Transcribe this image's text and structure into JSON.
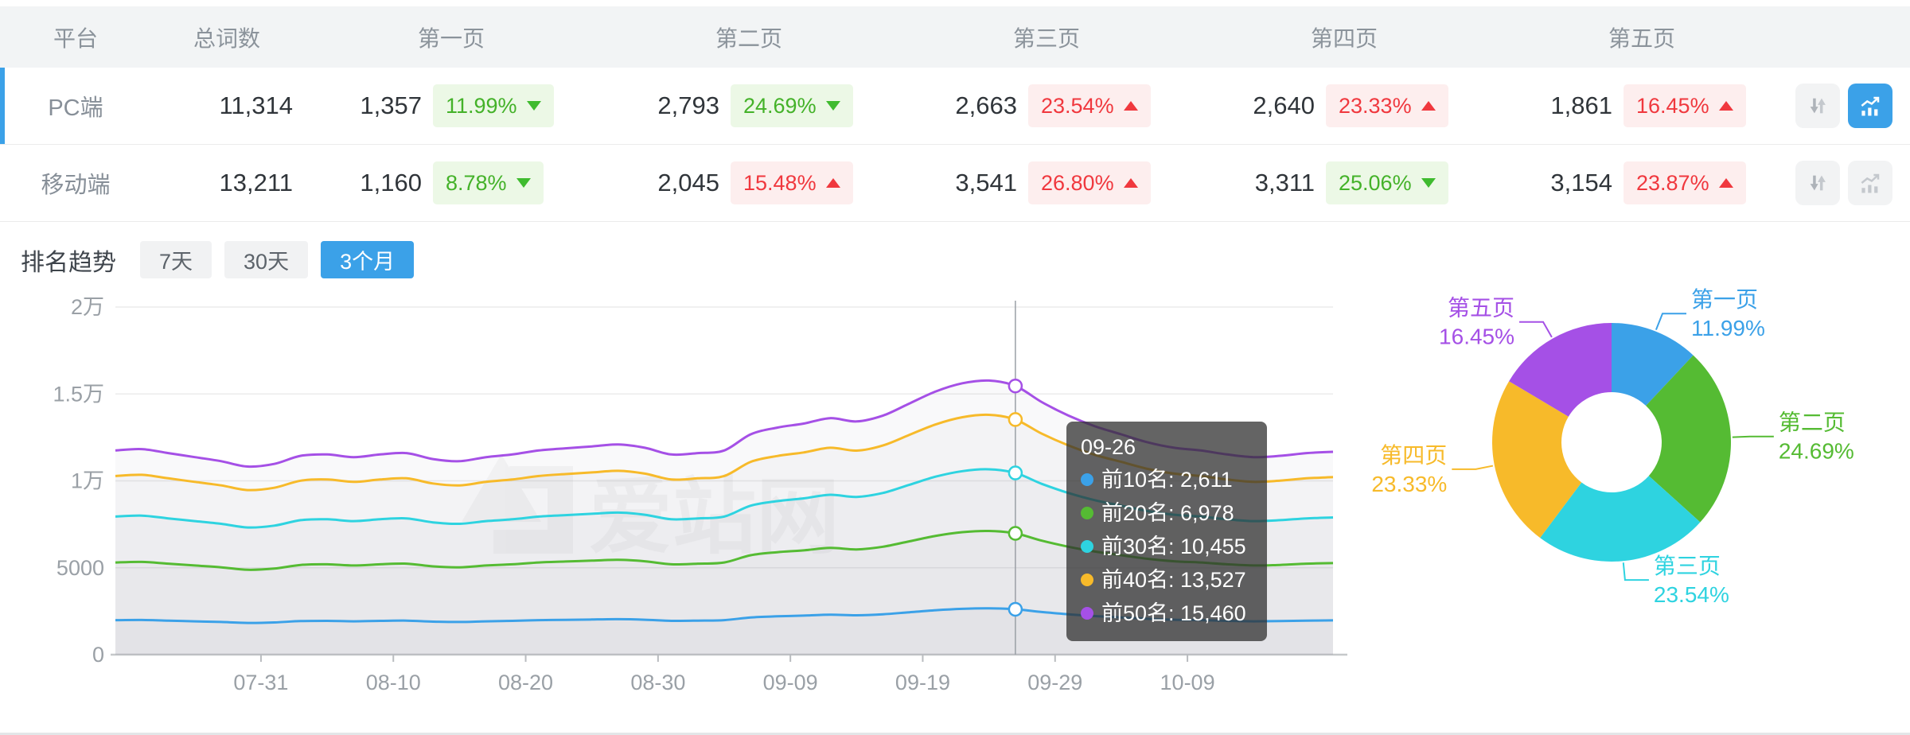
{
  "table": {
    "headers": [
      "平台",
      "总词数",
      "第一页",
      "第二页",
      "第三页",
      "第四页",
      "第五页"
    ],
    "rows": [
      {
        "platform": "PC端",
        "total": "11,314",
        "active": true,
        "chart_selected": true,
        "pages": [
          {
            "count": "1,357",
            "pct": "11.99%",
            "tone": "green",
            "dir": "down"
          },
          {
            "count": "2,793",
            "pct": "24.69%",
            "tone": "green",
            "dir": "down"
          },
          {
            "count": "2,663",
            "pct": "23.54%",
            "tone": "red",
            "dir": "up"
          },
          {
            "count": "2,640",
            "pct": "23.33%",
            "tone": "red",
            "dir": "up"
          },
          {
            "count": "1,861",
            "pct": "16.45%",
            "tone": "red",
            "dir": "up"
          }
        ]
      },
      {
        "platform": "移动端",
        "total": "13,211",
        "active": false,
        "chart_selected": false,
        "pages": [
          {
            "count": "1,160",
            "pct": "8.78%",
            "tone": "green",
            "dir": "down"
          },
          {
            "count": "2,045",
            "pct": "15.48%",
            "tone": "red",
            "dir": "up"
          },
          {
            "count": "3,541",
            "pct": "26.80%",
            "tone": "red",
            "dir": "up"
          },
          {
            "count": "3,311",
            "pct": "25.06%",
            "tone": "green",
            "dir": "down"
          },
          {
            "count": "3,154",
            "pct": "23.87%",
            "tone": "red",
            "dir": "up"
          }
        ]
      }
    ]
  },
  "trend": {
    "title": "排名趋势",
    "tabs": [
      {
        "label": "7天",
        "active": false
      },
      {
        "label": "30天",
        "active": false
      },
      {
        "label": "3个月",
        "active": true
      }
    ]
  },
  "tooltip": {
    "title": "09-26",
    "rows": [
      {
        "text": "前10名: 2,611",
        "color": "#3BA1E8"
      },
      {
        "text": "前20名: 6,978",
        "color": "#55BB33"
      },
      {
        "text": "前30名: 10,455",
        "color": "#2ED3E0"
      },
      {
        "text": "前40名: 13,527",
        "color": "#F7BA2A"
      },
      {
        "text": "前50名: 15,460",
        "color": "#A550E6"
      }
    ]
  },
  "colors": {
    "accent": "#3BA1E8",
    "badge_green": "#44B229",
    "badge_red": "#F0383E",
    "axis_text": "#9aa0a6",
    "grid": "#e9e9e9"
  },
  "icons": {
    "sort": "sort-arrows-icon",
    "trend": "trend-chart-icon"
  },
  "chart_data": [
    {
      "type": "line",
      "title": "排名趋势 (3个月)",
      "watermark": "爱站网",
      "ylim": [
        0,
        20000
      ],
      "y_ticks": [
        {
          "v": 0,
          "label": "0"
        },
        {
          "v": 5000,
          "label": "5000"
        },
        {
          "v": 10000,
          "label": "1万"
        },
        {
          "v": 15000,
          "label": "1.5万"
        },
        {
          "v": 20000,
          "label": "2万"
        }
      ],
      "span_days": 92,
      "sample_interval_days": 2,
      "x_dates": [
        "07-20",
        "07-22",
        "07-24",
        "07-26",
        "07-28",
        "07-30",
        "08-01",
        "08-03",
        "08-05",
        "08-07",
        "08-09",
        "08-11",
        "08-13",
        "08-15",
        "08-17",
        "08-19",
        "08-21",
        "08-23",
        "08-25",
        "08-27",
        "08-29",
        "08-31",
        "09-02",
        "09-04",
        "09-06",
        "09-08",
        "09-10",
        "09-12",
        "09-14",
        "09-16",
        "09-18",
        "09-20",
        "09-22",
        "09-24",
        "09-26",
        "09-28",
        "09-30",
        "10-02",
        "10-04",
        "10-06",
        "10-08",
        "10-10",
        "10-12",
        "10-14",
        "10-16",
        "10-18",
        "10-20"
      ],
      "x_ticks": [
        {
          "label": "07-31",
          "day": 11
        },
        {
          "label": "08-10",
          "day": 21
        },
        {
          "label": "08-20",
          "day": 31
        },
        {
          "label": "08-30",
          "day": 41
        },
        {
          "label": "09-09",
          "day": 51
        },
        {
          "label": "09-19",
          "day": 61
        },
        {
          "label": "09-29",
          "day": 71
        },
        {
          "label": "10-09",
          "day": 81
        }
      ],
      "highlight": {
        "date": "09-26",
        "day": 68,
        "index": 34
      },
      "series": [
        {
          "name": "前10名",
          "color": "#3BA1E8",
          "values": [
            1984,
            1997,
            1958,
            1919,
            1880,
            1828,
            1854,
            1932,
            1945,
            1919,
            1945,
            1958,
            1901,
            1880,
            1919,
            1945,
            1984,
            2005,
            2024,
            2042,
            2010,
            1945,
            1958,
            1984,
            2141,
            2206,
            2245,
            2298,
            2266,
            2324,
            2441,
            2559,
            2637,
            2663,
            2611,
            2454,
            2324,
            2219,
            2141,
            2063,
            2010,
            1984,
            1945,
            1919,
            1932,
            1958,
            1971
          ]
        },
        {
          "name": "前20名",
          "color": "#55BB33",
          "values": [
            5303,
            5338,
            5234,
            5129,
            5024,
            4885,
            4954,
            5164,
            5199,
            5129,
            5199,
            5234,
            5080,
            5024,
            5129,
            5199,
            5303,
            5359,
            5408,
            5457,
            5373,
            5199,
            5234,
            5303,
            5722,
            5896,
            6001,
            6141,
            6057,
            6210,
            6524,
            6838,
            7048,
            7118,
            6978,
            6559,
            6210,
            5931,
            5722,
            5513,
            5373,
            5303,
            5199,
            5129,
            5164,
            5234,
            5268
          ]
        },
        {
          "name": "前30名",
          "color": "#2ED3E0",
          "values": [
            7946,
            7998,
            7841,
            7684,
            7528,
            7319,
            7423,
            7737,
            7789,
            7684,
            7789,
            7841,
            7611,
            7528,
            7684,
            7789,
            7946,
            8029,
            8103,
            8176,
            8050,
            7789,
            7841,
            7946,
            8573,
            8834,
            8991,
            9200,
            9075,
            9305,
            9775,
            10246,
            10560,
            10664,
            10455,
            9828,
            9305,
            8887,
            8573,
            8259,
            8050,
            7946,
            7789,
            7684,
            7737,
            7841,
            7894
          ]
        },
        {
          "name": "前40名",
          "color": "#F7BA2A",
          "values": [
            10281,
            10348,
            10145,
            9942,
            9739,
            9469,
            9604,
            10010,
            10078,
            9942,
            10078,
            10145,
            9848,
            9739,
            9942,
            10078,
            10281,
            10389,
            10483,
            10578,
            10416,
            10078,
            10145,
            10281,
            11092,
            11430,
            11633,
            11904,
            11741,
            12039,
            12648,
            13256,
            13662,
            13798,
            13527,
            12715,
            12039,
            11498,
            11092,
            10686,
            10416,
            10281,
            10078,
            9942,
            10010,
            10145,
            10213
          ]
        },
        {
          "name": "前50名",
          "color": "#A550E6",
          "values": [
            11750,
            11827,
            11595,
            11363,
            11131,
            10822,
            10977,
            11440,
            11518,
            11363,
            11518,
            11595,
            11255,
            11131,
            11363,
            11518,
            11750,
            11873,
            11982,
            12090,
            11904,
            11518,
            11595,
            11750,
            12677,
            13064,
            13296,
            13605,
            13419,
            13759,
            14455,
            15151,
            15615,
            15769,
            15460,
            14532,
            13759,
            13141,
            12677,
            12213,
            11904,
            11750,
            11518,
            11363,
            11440,
            11595,
            11672
          ]
        }
      ]
    },
    {
      "type": "pie",
      "donut": true,
      "slices": [
        {
          "label": "第一页",
          "value": 11.99,
          "display": "11.99%",
          "color": "#3BA1E8"
        },
        {
          "label": "第二页",
          "value": 24.69,
          "display": "24.69%",
          "color": "#55BB33"
        },
        {
          "label": "第三页",
          "value": 23.54,
          "display": "23.54%",
          "color": "#2ED3E0"
        },
        {
          "label": "第四页",
          "value": 23.33,
          "display": "23.33%",
          "color": "#F7BA2A"
        },
        {
          "label": "第五页",
          "value": 16.45,
          "display": "16.45%",
          "color": "#A550E6"
        }
      ]
    }
  ]
}
